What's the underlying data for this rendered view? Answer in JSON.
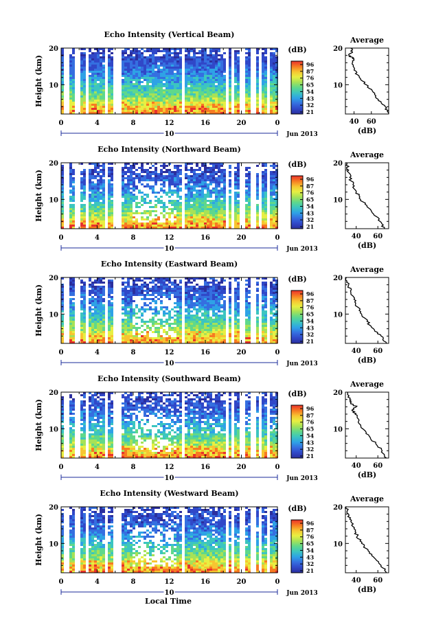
{
  "figure": {
    "xlabel": "Local Time",
    "date_label": "Jun 2013",
    "day_marker": "10",
    "colorbar_unit": "(dB)",
    "colorbar_ticks": [
      "96",
      "87",
      "76",
      "65",
      "54",
      "43",
      "32",
      "21"
    ],
    "colorbar_colors": [
      "#e8322c",
      "#f77a22",
      "#f7c531",
      "#e8ef42",
      "#a6e257",
      "#5fd88b",
      "#3cc5c0",
      "#2ea2e6",
      "#356fe0",
      "#3048c8",
      "#2b2f9e"
    ],
    "profile_title": "Average",
    "profile_xlabel": "(dB)"
  },
  "chart_data": [
    {
      "type": "heatmap",
      "title": "Echo Intensity (Vertical Beam)",
      "xlabel": "Local Time",
      "ylabel": "Height (km)",
      "xlim": [
        0,
        24
      ],
      "ylim": [
        2,
        20
      ],
      "x_ticks": [
        "0",
        "4",
        "8",
        "12",
        "16",
        "20",
        "0"
      ],
      "y_ticks": [
        "10",
        "20"
      ],
      "clim": [
        21,
        96
      ],
      "profile": {
        "title": "Average",
        "xlabel": "(dB)",
        "x_ticks": [
          "40",
          "60"
        ],
        "xlim": [
          30,
          80
        ],
        "height": [
          2,
          4,
          6,
          8,
          10,
          12,
          14,
          16,
          17,
          18,
          19,
          20
        ],
        "value": [
          80,
          76,
          68,
          62,
          54,
          46,
          40,
          38,
          40,
          34,
          38,
          36
        ]
      }
    },
    {
      "type": "heatmap",
      "title": "Echo Intensity (Northward Beam)",
      "xlabel": "Local Time",
      "ylabel": "Height (km)",
      "xlim": [
        0,
        24
      ],
      "ylim": [
        2,
        20
      ],
      "x_ticks": [
        "0",
        "4",
        "8",
        "12",
        "16",
        "20",
        "0"
      ],
      "y_ticks": [
        "10",
        "20"
      ],
      "clim": [
        21,
        96
      ],
      "profile": {
        "title": "Average",
        "xlabel": "(dB)",
        "x_ticks": [
          "40",
          "60"
        ],
        "xlim": [
          30,
          70
        ],
        "height": [
          2,
          4,
          6,
          8,
          10,
          12,
          14,
          16,
          18,
          20
        ],
        "value": [
          66,
          62,
          56,
          50,
          44,
          40,
          37,
          34,
          33,
          31
        ]
      }
    },
    {
      "type": "heatmap",
      "title": "Echo Intensity (Eastward Beam)",
      "xlabel": "Local Time",
      "ylabel": "Height (km)",
      "xlim": [
        0,
        24
      ],
      "ylim": [
        2,
        20
      ],
      "x_ticks": [
        "0",
        "4",
        "8",
        "12",
        "16",
        "20",
        "0"
      ],
      "y_ticks": [
        "10",
        "20"
      ],
      "clim": [
        21,
        96
      ],
      "profile": {
        "title": "Average",
        "xlabel": "(dB)",
        "x_ticks": [
          "40",
          "60"
        ],
        "xlim": [
          30,
          70
        ],
        "height": [
          2,
          4,
          6,
          8,
          10,
          12,
          14,
          16,
          18,
          20
        ],
        "value": [
          68,
          63,
          56,
          50,
          45,
          41,
          38,
          35,
          33,
          31
        ]
      }
    },
    {
      "type": "heatmap",
      "title": "Echo Intensity (Southward Beam)",
      "xlabel": "Local Time",
      "ylabel": "Height (km)",
      "xlim": [
        0,
        24
      ],
      "ylim": [
        2,
        20
      ],
      "x_ticks": [
        "0",
        "4",
        "8",
        "12",
        "16",
        "20",
        "0"
      ],
      "y_ticks": [
        "10",
        "20"
      ],
      "clim": [
        21,
        96
      ],
      "profile": {
        "title": "Average",
        "xlabel": "(dB)",
        "x_ticks": [
          "40",
          "60"
        ],
        "xlim": [
          30,
          70
        ],
        "height": [
          2,
          4,
          6,
          8,
          10,
          12,
          14,
          15,
          16,
          17,
          18,
          20
        ],
        "value": [
          68,
          64,
          58,
          52,
          46,
          42,
          39,
          36,
          40,
          35,
          34,
          32
        ]
      }
    },
    {
      "type": "heatmap",
      "title": "Echo Intensity (Westward Beam)",
      "xlabel": "Local Time",
      "ylabel": "Height (km)",
      "xlim": [
        0,
        24
      ],
      "ylim": [
        2,
        20
      ],
      "x_ticks": [
        "0",
        "4",
        "8",
        "12",
        "16",
        "20",
        "0"
      ],
      "y_ticks": [
        "10",
        "20"
      ],
      "clim": [
        21,
        96
      ],
      "profile": {
        "title": "Average",
        "xlabel": "(dB)",
        "x_ticks": [
          "40",
          "60"
        ],
        "xlim": [
          30,
          70
        ],
        "height": [
          2,
          4,
          6,
          8,
          10,
          12,
          14,
          16,
          18,
          20
        ],
        "value": [
          68,
          63,
          57,
          51,
          45,
          41,
          38,
          35,
          33,
          31
        ]
      }
    }
  ]
}
